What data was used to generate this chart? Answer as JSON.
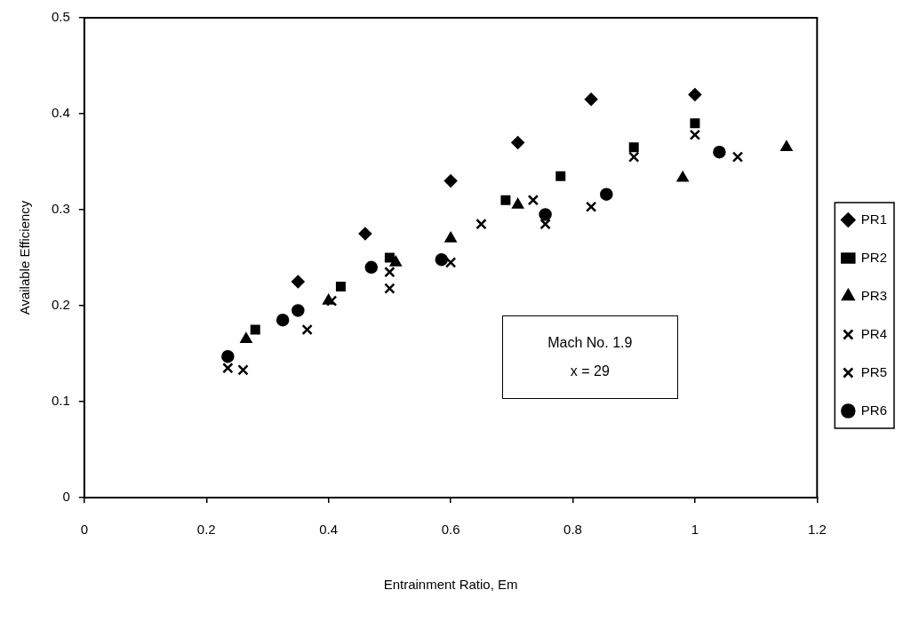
{
  "chart_data": {
    "type": "scatter",
    "xlabel": "Entrainment Ratio, Em",
    "ylabel": "Available Efficiency",
    "xlim": [
      0,
      1.2
    ],
    "xticks": [
      0,
      0.2,
      0.4,
      0.6,
      0.8,
      1,
      1.2
    ],
    "ylim": [
      0,
      0.5
    ],
    "yticks": [
      0,
      0.1,
      0.2,
      0.3,
      0.4,
      0.5
    ],
    "grid": false,
    "legend": "right",
    "annotations": [
      "Mach No. 1.9",
      "x = 29"
    ],
    "series": [
      {
        "name": "PR1",
        "color": "#000000",
        "marker": "diamond",
        "x": [
          0.35,
          0.46,
          0.6,
          0.71,
          0.83,
          1.0
        ],
        "values": [
          0.225,
          0.275,
          0.33,
          0.37,
          0.415,
          0.42
        ]
      },
      {
        "name": "PR2",
        "color": "#000000",
        "marker": "square",
        "x": [
          0.28,
          0.42,
          0.5,
          0.69,
          0.78,
          0.9,
          1.0
        ],
        "values": [
          0.175,
          0.22,
          0.25,
          0.31,
          0.335,
          0.365,
          0.39
        ]
      },
      {
        "name": "PR3",
        "color": "#000000",
        "marker": "triangle",
        "x": [
          0.265,
          0.4,
          0.51,
          0.6,
          0.71,
          0.98,
          1.15
        ],
        "values": [
          0.165,
          0.205,
          0.245,
          0.27,
          0.305,
          0.333,
          0.365
        ]
      },
      {
        "name": "PR4",
        "color": "#000000",
        "marker": "cross",
        "x": [
          0.235,
          0.405,
          0.5,
          0.65,
          0.735,
          0.9,
          1.0
        ],
        "values": [
          0.135,
          0.205,
          0.235,
          0.285,
          0.31,
          0.355,
          0.378
        ]
      },
      {
        "name": "PR5",
        "color": "#000000",
        "marker": "cross",
        "x": [
          0.26,
          0.365,
          0.5,
          0.6,
          0.755,
          0.83,
          1.07
        ],
        "values": [
          0.133,
          0.175,
          0.218,
          0.245,
          0.285,
          0.303,
          0.355
        ]
      },
      {
        "name": "PR6",
        "color": "#000000",
        "marker": "circle",
        "x": [
          0.235,
          0.325,
          0.35,
          0.47,
          0.585,
          0.755,
          0.855,
          1.04
        ],
        "values": [
          0.147,
          0.185,
          0.195,
          0.24,
          0.248,
          0.295,
          0.316,
          0.36
        ]
      }
    ]
  }
}
